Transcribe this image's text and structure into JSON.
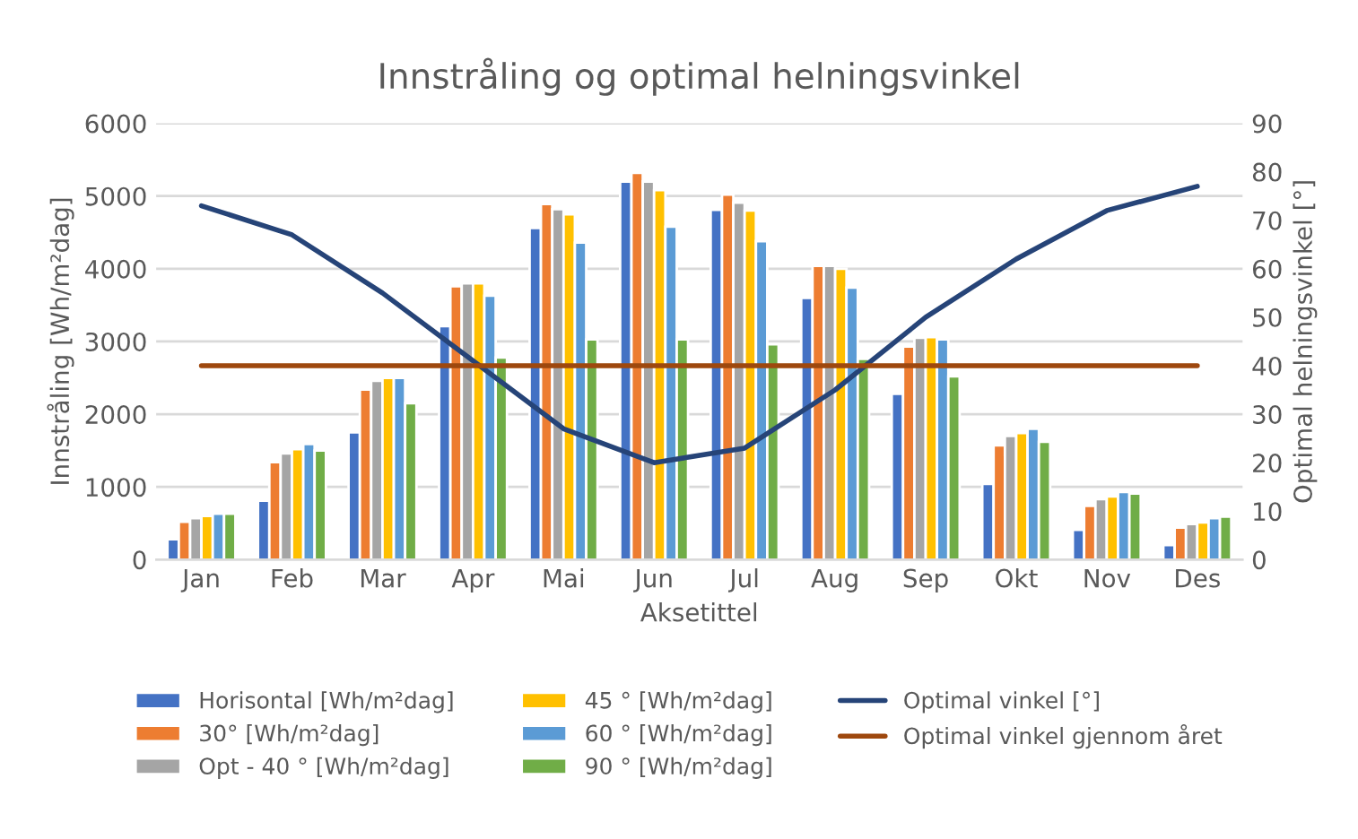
{
  "chart_data": {
    "type": "bar",
    "title": "Innstråling og optimal helningsvinkel",
    "xlabel": "Aksetittel",
    "ylabel": "Innstråling [Wh/m²dag]",
    "y2label": "Optimal helningsvinkel [°]",
    "categories": [
      "Jan",
      "Feb",
      "Mar",
      "Apr",
      "Mai",
      "Jun",
      "Jul",
      "Aug",
      "Sep",
      "Okt",
      "Nov",
      "Des"
    ],
    "ylim": [
      0,
      6000
    ],
    "yticks": [
      0,
      1000,
      2000,
      3000,
      4000,
      5000,
      6000
    ],
    "y2lim": [
      0,
      90
    ],
    "y2ticks": [
      0,
      10,
      20,
      30,
      40,
      50,
      60,
      70,
      80,
      90
    ],
    "grid": "y",
    "legend": "bottom",
    "series": [
      {
        "name": "Horisontal [Wh/m²dag]",
        "color": "#4472c4",
        "values": [
          280,
          810,
          1750,
          3210,
          4560,
          5200,
          4810,
          3600,
          2280,
          1040,
          410,
          200
        ]
      },
      {
        "name": "30° [Wh/m²dag]",
        "color": "#ed7d31",
        "values": [
          520,
          1340,
          2340,
          3760,
          4890,
          5320,
          5020,
          4040,
          2930,
          1570,
          740,
          440
        ]
      },
      {
        "name": "Opt - 40 ° [Wh/m²dag]",
        "color": "#a5a5a5",
        "values": [
          570,
          1460,
          2460,
          3800,
          4820,
          5200,
          4910,
          4040,
          3050,
          1700,
          830,
          490
        ]
      },
      {
        "name": "45 ° [Wh/m²dag]",
        "color": "#ffc000",
        "values": [
          600,
          1520,
          2500,
          3800,
          4750,
          5080,
          4800,
          4000,
          3060,
          1740,
          870,
          510
        ]
      },
      {
        "name": "60 ° [Wh/m²dag]",
        "color": "#5b9bd5",
        "values": [
          630,
          1590,
          2500,
          3630,
          4360,
          4580,
          4380,
          3740,
          3030,
          1800,
          930,
          570
        ]
      },
      {
        "name": "90 ° [Wh/m²dag]",
        "color": "#70ad47",
        "values": [
          630,
          1500,
          2150,
          2780,
          3030,
          3030,
          2960,
          2760,
          2520,
          1620,
          910,
          590
        ]
      },
      {
        "name": "Optimal vinkel [°]",
        "color": "#264478",
        "type": "line",
        "axis": "y2",
        "values": [
          73,
          67,
          55,
          41,
          27,
          20,
          23,
          35,
          50,
          62,
          72,
          77
        ]
      },
      {
        "name": "Optimal vinkel gjennom året",
        "color": "#9e480e",
        "type": "line",
        "axis": "y2",
        "values": [
          40,
          40,
          40,
          40,
          40,
          40,
          40,
          40,
          40,
          40,
          40,
          40
        ]
      }
    ]
  }
}
